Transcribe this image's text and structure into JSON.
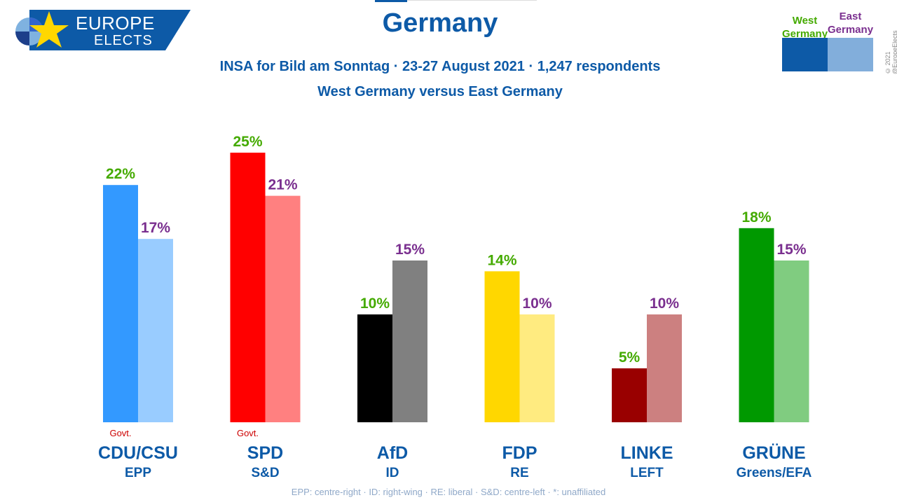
{
  "logo": {
    "line1": "EUROPE",
    "line2": "ELECTS"
  },
  "header": {
    "title": "Germany",
    "subtitle1": "INSA for Bild am Sonntag · 23-27 August 2021 · 1,247 respondents",
    "subtitle2": "West Germany versus East Germany"
  },
  "legend": {
    "west_label": "West Germany",
    "east_label": "East Germany",
    "west_color": "#0d5aa7",
    "east_color": "#82aedb"
  },
  "copyright": "© 2021 @EuropeElects",
  "footer": "EPP: centre-right · ID: right-wing · RE: liberal · S&D: centre-left · *: unaffiliated",
  "chart_data": {
    "type": "bar",
    "title": "Germany",
    "categories": [
      "CDU/CSU",
      "SPD",
      "AfD",
      "FDP",
      "LINKE",
      "GRÜNE"
    ],
    "groups": [
      "EPP",
      "S&D",
      "ID",
      "RE",
      "LEFT",
      "Greens/EFA"
    ],
    "govt": [
      "Govt.",
      "Govt.",
      "",
      "",
      "",
      ""
    ],
    "series": [
      {
        "name": "West Germany",
        "values": [
          22,
          25,
          10,
          14,
          5,
          18
        ]
      },
      {
        "name": "East Germany",
        "values": [
          17,
          21,
          15,
          10,
          10,
          15
        ]
      }
    ],
    "value_suffix": "%",
    "west_colors": [
      "#3399ff",
      "#ff0000",
      "#000000",
      "#ffd700",
      "#990000",
      "#009900"
    ],
    "east_colors": [
      "#99ccff",
      "#ff8080",
      "#808080",
      "#ffeb80",
      "#cc8080",
      "#80cc80"
    ],
    "west_label_color": "#44aa00",
    "east_label_color": "#7a2f8f",
    "ylim": [
      0,
      25
    ],
    "grid": false
  }
}
